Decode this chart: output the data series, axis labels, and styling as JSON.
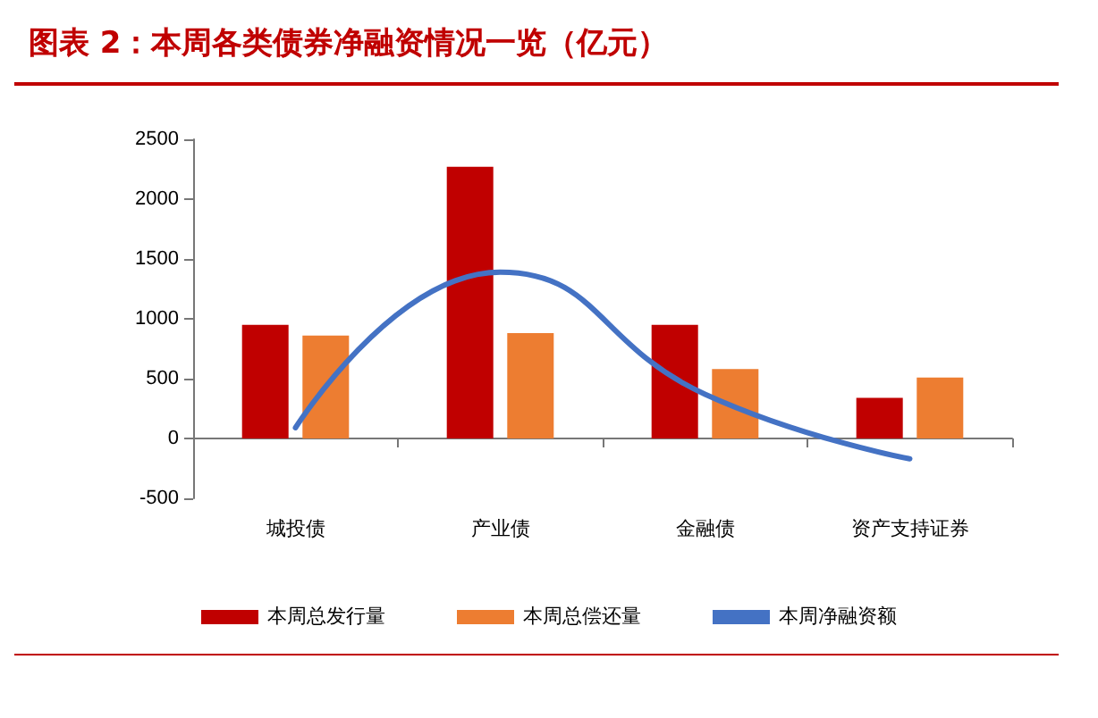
{
  "chart_data": {
    "type": "bar",
    "title": "图表 2：本周各类债券净融资情况一览（亿元）",
    "categories": [
      "城投债",
      "产业债",
      "金融债",
      "资产支持证券"
    ],
    "series": [
      {
        "name": "本周总发行量",
        "color": "#c00000",
        "values": [
          950,
          2270,
          950,
          340
        ]
      },
      {
        "name": "本周总偿还量",
        "color": "#ed7d31",
        "values": [
          860,
          880,
          580,
          510
        ]
      },
      {
        "name": "本周净融资额",
        "type": "line",
        "color": "#4472c4",
        "values": [
          90,
          1390,
          370,
          -170
        ]
      }
    ],
    "ylim": [
      -500,
      2500
    ],
    "yticks": [
      -500,
      0,
      500,
      1000,
      1500,
      2000,
      2500
    ],
    "legend": "bottom",
    "marker": "none",
    "line_style": "solid"
  }
}
